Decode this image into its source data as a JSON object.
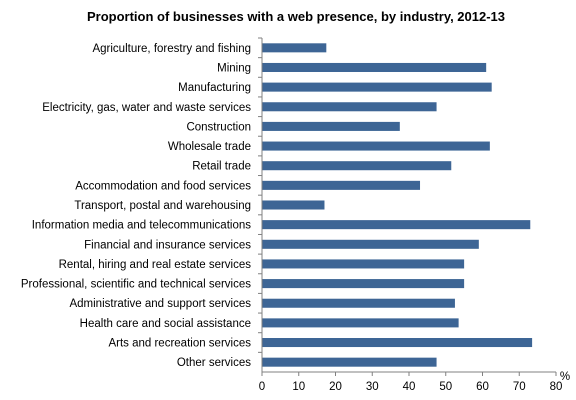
{
  "chart_data": {
    "type": "bar",
    "orientation": "horizontal",
    "title": "Proportion of businesses with a web presence, by industry, 2012-13",
    "xlabel": "",
    "ylabel": "",
    "unit_label": "%",
    "xlim": [
      0,
      80
    ],
    "x_ticks": [
      0,
      10,
      20,
      30,
      40,
      50,
      60,
      70,
      80
    ],
    "grid": false,
    "bar_color": "#3d6595",
    "categories": [
      "Agriculture, forestry and fishing",
      "Mining",
      "Manufacturing",
      "Electricity, gas, water and waste services",
      "Construction",
      "Wholesale trade",
      "Retail trade",
      "Accommodation and food services",
      "Transport, postal and warehousing",
      "Information media and telecommunications",
      "Financial and insurance services",
      "Rental, hiring and real estate services",
      "Professional, scientific and technical services",
      "Administrative and support services",
      "Health care and social assistance",
      "Arts and recreation services",
      "Other services"
    ],
    "values": [
      17.5,
      61,
      62.5,
      47.5,
      37.5,
      62,
      51.5,
      43,
      17,
      73,
      59,
      55,
      55,
      52.5,
      53.5,
      73.5,
      47.5
    ]
  }
}
